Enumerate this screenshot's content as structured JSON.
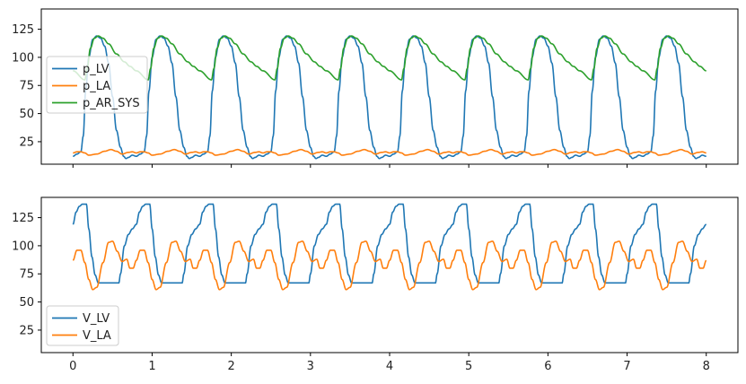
{
  "chart_data": [
    {
      "type": "line",
      "title": "",
      "xlabel": "",
      "ylabel": "",
      "xlim": [
        -0.4,
        8.4
      ],
      "ylim": [
        5,
        143
      ],
      "xticks": [
        0,
        1,
        2,
        3,
        4,
        5,
        6,
        7,
        8
      ],
      "xtick_labels_visible": false,
      "yticks": [
        25,
        50,
        75,
        100,
        125
      ],
      "ytick_labels": [
        "25",
        "50",
        "75",
        "100",
        "125"
      ],
      "grid": false,
      "legend": "center-left",
      "period": 0.8,
      "series": [
        {
          "name": "p_LV",
          "color": "#1f77b4",
          "cycle_points": [
            [
              0,
              12
            ],
            [
              0.05,
              14
            ],
            [
              0.1,
              16
            ],
            [
              0.13,
              30
            ],
            [
              0.16,
              70
            ],
            [
              0.2,
              100
            ],
            [
              0.25,
              116
            ],
            [
              0.3,
              119
            ],
            [
              0.35,
              117
            ],
            [
              0.4,
              110
            ],
            [
              0.45,
              95
            ],
            [
              0.5,
              65
            ],
            [
              0.55,
              35
            ],
            [
              0.6,
              20
            ],
            [
              0.64,
              12
            ],
            [
              0.67,
              10
            ],
            [
              0.7,
              11
            ],
            [
              0.75,
              13
            ],
            [
              0.8,
              12
            ]
          ]
        },
        {
          "name": "p_LA",
          "color": "#ff7f0e",
          "cycle_points": [
            [
              0,
              15
            ],
            [
              0.05,
              16
            ],
            [
              0.1,
              16
            ],
            [
              0.15,
              15
            ],
            [
              0.2,
              13
            ],
            [
              0.3,
              14
            ],
            [
              0.4,
              16.5
            ],
            [
              0.48,
              18
            ],
            [
              0.55,
              16.5
            ],
            [
              0.62,
              14
            ],
            [
              0.7,
              15.5
            ],
            [
              0.75,
              16
            ],
            [
              0.8,
              15
            ]
          ]
        },
        {
          "name": "p_AR_SYS",
          "color": "#2ca02c",
          "cycle_points": [
            [
              0,
              88
            ],
            [
              0.15,
              80
            ],
            [
              0.18,
              90
            ],
            [
              0.22,
              108
            ],
            [
              0.27,
              117
            ],
            [
              0.32,
              119
            ],
            [
              0.38,
              117
            ],
            [
              0.45,
              112
            ],
            [
              0.55,
              103
            ],
            [
              0.65,
              96
            ],
            [
              0.72,
              92
            ],
            [
              0.8,
              88
            ]
          ]
        }
      ]
    },
    {
      "type": "line",
      "title": "",
      "xlabel": "",
      "ylabel": "",
      "xlim": [
        -0.4,
        8.4
      ],
      "ylim": [
        5,
        143
      ],
      "xticks": [
        0,
        1,
        2,
        3,
        4,
        5,
        6,
        7,
        8
      ],
      "xtick_labels": [
        "0",
        "1",
        "2",
        "3",
        "4",
        "5",
        "6",
        "7",
        "8"
      ],
      "yticks": [
        25,
        50,
        75,
        100,
        125
      ],
      "ytick_labels": [
        "25",
        "50",
        "75",
        "100",
        "125"
      ],
      "grid": false,
      "legend": "lower-left",
      "period": 0.8,
      "series": [
        {
          "name": "V_LV",
          "color": "#1f77b4",
          "cycle_points": [
            [
              0,
              119
            ],
            [
              0.04,
              130
            ],
            [
              0.08,
              135
            ],
            [
              0.12,
              137
            ],
            [
              0.17,
              137
            ],
            [
              0.2,
              115
            ],
            [
              0.24,
              90
            ],
            [
              0.28,
              74
            ],
            [
              0.32,
              67
            ],
            [
              0.45,
              67
            ],
            [
              0.58,
              67
            ],
            [
              0.6,
              75
            ],
            [
              0.65,
              100
            ],
            [
              0.7,
              110
            ],
            [
              0.75,
              115
            ],
            [
              0.8,
              119
            ]
          ]
        },
        {
          "name": "V_LA",
          "color": "#ff7f0e",
          "cycle_points": [
            [
              0,
              87
            ],
            [
              0.05,
              96
            ],
            [
              0.1,
              96
            ],
            [
              0.15,
              85
            ],
            [
              0.2,
              70
            ],
            [
              0.25,
              61
            ],
            [
              0.3,
              63
            ],
            [
              0.38,
              85
            ],
            [
              0.45,
              103
            ],
            [
              0.5,
              104
            ],
            [
              0.56,
              95
            ],
            [
              0.62,
              86
            ],
            [
              0.68,
              88
            ],
            [
              0.72,
              80
            ],
            [
              0.76,
              80
            ],
            [
              0.8,
              87
            ]
          ]
        }
      ]
    }
  ]
}
